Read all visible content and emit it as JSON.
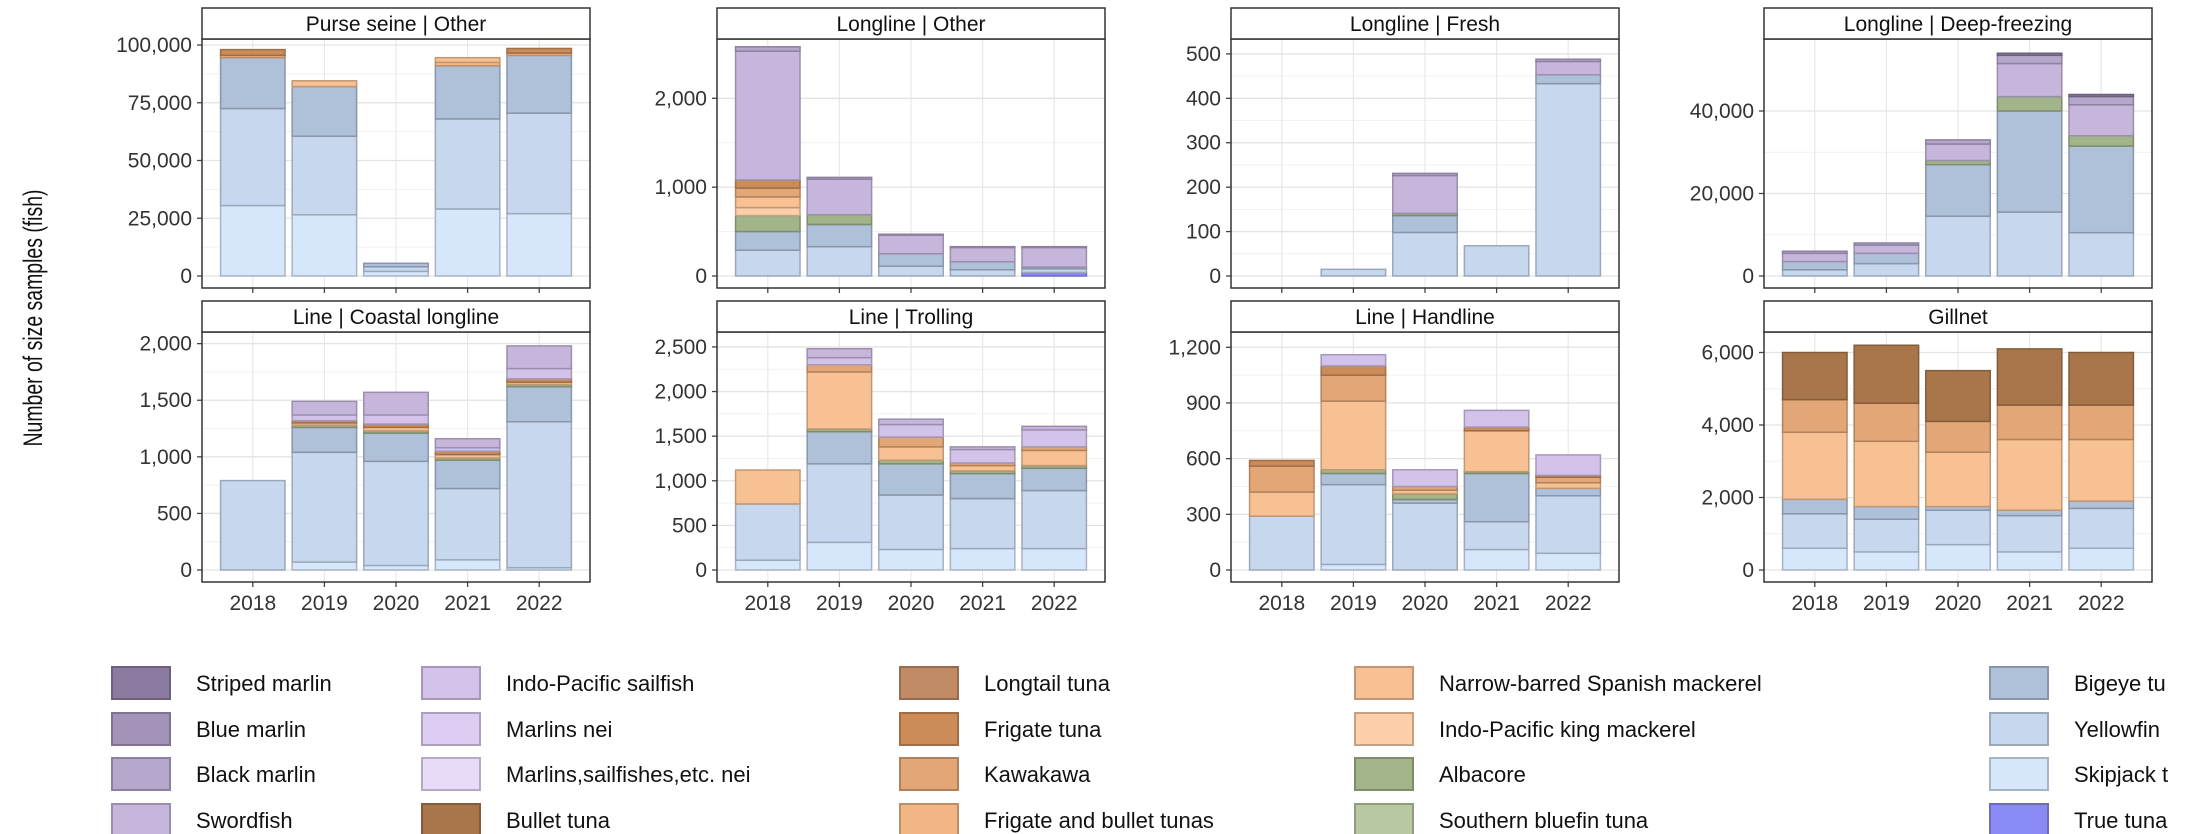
{
  "figure": {
    "ylabel": "Number of size samples (fish)",
    "years": [
      "2018",
      "2019",
      "2020",
      "2021",
      "2022"
    ]
  },
  "species": [
    {
      "key": "striped_marlin",
      "label": "Striped marlin",
      "color": "#8B7BA0"
    },
    {
      "key": "blue_marlin",
      "label": "Blue marlin",
      "color": "#A393B8"
    },
    {
      "key": "black_marlin",
      "label": "Black marlin",
      "color": "#B5A6CC"
    },
    {
      "key": "swordfish",
      "label": "Swordfish",
      "color": "#C7B6DC"
    },
    {
      "key": "ip_sailfish",
      "label": "Indo-Pacific sailfish",
      "color": "#D3C3EA"
    },
    {
      "key": "marlins_nei",
      "label": "Marlins nei",
      "color": "#DDCDF2"
    },
    {
      "key": "marlins_sailfishes_nei",
      "label": "Marlins,sailfishes,etc. nei",
      "color": "#E8DAF9"
    },
    {
      "key": "bullet_tuna",
      "label": "Bullet tuna",
      "color": "#A8764A"
    },
    {
      "key": "longtail_tuna",
      "label": "Longtail tuna",
      "color": "#C08B64"
    },
    {
      "key": "frigate_tuna",
      "label": "Frigate tuna",
      "color": "#CC8C5A"
    },
    {
      "key": "kawakawa",
      "label": "Kawakawa",
      "color": "#E3A676"
    },
    {
      "key": "frigate_bullet",
      "label": "Frigate and bullet tunas",
      "color": "#F2B584"
    },
    {
      "key": "narrow_barred",
      "label": "Narrow-barred Spanish mackerel",
      "color": "#F8C194"
    },
    {
      "key": "ip_king",
      "label": "Indo-Pacific king mackerel",
      "color": "#FCCEAA"
    },
    {
      "key": "albacore",
      "label": "Albacore",
      "color": "#A1B48A"
    },
    {
      "key": "southern_bluefin",
      "label": "Southern bluefin tuna",
      "color": "#B8C8A0"
    },
    {
      "key": "bigeye",
      "label": "Bigeye tu",
      "color": "#AFC0D9"
    },
    {
      "key": "yellowfin",
      "label": "Yellowfin",
      "color": "#C7D7EE"
    },
    {
      "key": "skipjack",
      "label": "Skipjack t",
      "color": "#D6E7FB"
    },
    {
      "key": "true_tuna",
      "label": "True tuna",
      "color": "#8A8AF5"
    }
  ],
  "chart_data": [
    {
      "type": "bar",
      "stacked": true,
      "title": "Purse seine | Other",
      "ylim": [
        0,
        100000
      ],
      "yticks": [
        0,
        25000,
        50000,
        75000,
        100000
      ],
      "ytick_labels": [
        "0",
        "25,000",
        "50,000",
        "75,000",
        "100,000"
      ],
      "categories": [
        "2018",
        "2019",
        "2020",
        "2021",
        "2022"
      ],
      "series": [
        {
          "species": "skipjack",
          "values": [
            30500,
            26500,
            2000,
            29000,
            27000
          ]
        },
        {
          "species": "yellowfin",
          "values": [
            42000,
            34000,
            2000,
            39000,
            43500
          ]
        },
        {
          "species": "bigeye",
          "values": [
            22000,
            21500,
            1500,
            23000,
            25000
          ]
        },
        {
          "species": "frigate_bullet",
          "values": [
            1000,
            0,
            0,
            1500,
            1000
          ]
        },
        {
          "species": "narrow_barred",
          "values": [
            0,
            2500,
            0,
            2000,
            0
          ]
        },
        {
          "species": "frigate_tuna",
          "values": [
            2500,
            0,
            0,
            0,
            2000
          ]
        }
      ]
    },
    {
      "type": "bar",
      "stacked": true,
      "title": "Longline | Other",
      "ylim": [
        0,
        2600
      ],
      "yticks": [
        0,
        1000,
        2000
      ],
      "ytick_labels": [
        "0",
        "1,000",
        "2,000"
      ],
      "categories": [
        "2018",
        "2019",
        "2020",
        "2021",
        "2022"
      ],
      "series": [
        {
          "species": "true_tuna",
          "values": [
            0,
            0,
            0,
            0,
            40
          ]
        },
        {
          "species": "yellowfin",
          "values": [
            290,
            330,
            110,
            70,
            40
          ]
        },
        {
          "species": "bigeye",
          "values": [
            210,
            250,
            140,
            90,
            20
          ]
        },
        {
          "species": "albacore",
          "values": [
            180,
            110,
            0,
            0,
            0
          ]
        },
        {
          "species": "ip_king",
          "values": [
            90,
            0,
            0,
            0,
            0
          ]
        },
        {
          "species": "narrow_barred",
          "values": [
            120,
            0,
            0,
            0,
            0
          ]
        },
        {
          "species": "kawakawa",
          "values": [
            100,
            0,
            0,
            0,
            0
          ]
        },
        {
          "species": "frigate_tuna",
          "values": [
            90,
            0,
            0,
            0,
            0
          ]
        },
        {
          "species": "swordfish",
          "values": [
            1450,
            400,
            210,
            160,
            220
          ]
        },
        {
          "species": "black_marlin",
          "values": [
            50,
            20,
            10,
            10,
            10
          ]
        }
      ]
    },
    {
      "type": "bar",
      "stacked": true,
      "title": "Longline | Fresh",
      "ylim": [
        0,
        520
      ],
      "yticks": [
        0,
        100,
        200,
        300,
        400,
        500
      ],
      "ytick_labels": [
        "0",
        "100",
        "200",
        "300",
        "400",
        "500"
      ],
      "categories": [
        "2018",
        "2019",
        "2020",
        "2021",
        "2022"
      ],
      "series": [
        {
          "species": "yellowfin",
          "values": [
            0,
            15,
            98,
            68,
            433
          ]
        },
        {
          "species": "bigeye",
          "values": [
            0,
            0,
            38,
            0,
            20
          ]
        },
        {
          "species": "albacore",
          "values": [
            0,
            0,
            5,
            0,
            0
          ]
        },
        {
          "species": "swordfish",
          "values": [
            0,
            0,
            85,
            0,
            30
          ]
        },
        {
          "species": "black_marlin",
          "values": [
            0,
            0,
            5,
            0,
            5
          ]
        }
      ]
    },
    {
      "type": "bar",
      "stacked": true,
      "title": "Longline | Deep-freezing",
      "ylim": [
        0,
        56000
      ],
      "yticks": [
        0,
        20000,
        40000
      ],
      "ytick_labels": [
        "0",
        "20,000",
        "40,000"
      ],
      "categories": [
        "2018",
        "2019",
        "2020",
        "2021",
        "2022"
      ],
      "series": [
        {
          "species": "yellowfin",
          "values": [
            1500,
            3000,
            14500,
            15500,
            10500
          ]
        },
        {
          "species": "bigeye",
          "values": [
            2000,
            2500,
            12500,
            24500,
            21000
          ]
        },
        {
          "species": "albacore",
          "values": [
            0,
            0,
            1000,
            3500,
            2500
          ]
        },
        {
          "species": "swordfish",
          "values": [
            2000,
            2000,
            4000,
            8000,
            7500
          ]
        },
        {
          "species": "black_marlin",
          "values": [
            500,
            500,
            1000,
            2000,
            2000
          ]
        },
        {
          "species": "striped_marlin",
          "values": [
            0,
            0,
            0,
            500,
            500
          ]
        }
      ]
    },
    {
      "type": "bar",
      "stacked": true,
      "title": "Line | Coastal longline",
      "ylim": [
        0,
        2050
      ],
      "yticks": [
        0,
        500,
        1000,
        1500,
        2000
      ],
      "ytick_labels": [
        "0",
        "500",
        "1,000",
        "1,500",
        "2,000"
      ],
      "categories": [
        "2018",
        "2019",
        "2020",
        "2021",
        "2022"
      ],
      "series": [
        {
          "species": "skipjack",
          "values": [
            0,
            70,
            40,
            90,
            20
          ]
        },
        {
          "species": "yellowfin",
          "values": [
            790,
            970,
            920,
            630,
            1290
          ]
        },
        {
          "species": "bigeye",
          "values": [
            0,
            220,
            250,
            250,
            310
          ]
        },
        {
          "species": "albacore",
          "values": [
            0,
            20,
            20,
            20,
            20
          ]
        },
        {
          "species": "narrow_barred",
          "values": [
            0,
            20,
            30,
            30,
            20
          ]
        },
        {
          "species": "frigate_tuna",
          "values": [
            0,
            20,
            30,
            30,
            30
          ]
        },
        {
          "species": "ip_sailfish",
          "values": [
            0,
            50,
            80,
            30,
            90
          ]
        },
        {
          "species": "swordfish",
          "values": [
            0,
            120,
            200,
            80,
            200
          ]
        }
      ]
    },
    {
      "type": "bar",
      "stacked": true,
      "title": "Line | Trolling",
      "ylim": [
        0,
        2600
      ],
      "yticks": [
        0,
        500,
        1000,
        1500,
        2000,
        2500
      ],
      "ytick_labels": [
        "0",
        "500",
        "1,000",
        "1,500",
        "2,000",
        "2,500"
      ],
      "categories": [
        "2018",
        "2019",
        "2020",
        "2021",
        "2022"
      ],
      "series": [
        {
          "species": "skipjack",
          "values": [
            110,
            310,
            230,
            240,
            240
          ]
        },
        {
          "species": "yellowfin",
          "values": [
            630,
            880,
            610,
            560,
            650
          ]
        },
        {
          "species": "bigeye",
          "values": [
            0,
            360,
            350,
            280,
            250
          ]
        },
        {
          "species": "albacore",
          "values": [
            0,
            30,
            40,
            30,
            30
          ]
        },
        {
          "species": "narrow_barred",
          "values": [
            380,
            640,
            150,
            60,
            170
          ]
        },
        {
          "species": "kawakawa",
          "values": [
            0,
            80,
            110,
            30,
            40
          ]
        },
        {
          "species": "ip_sailfish",
          "values": [
            0,
            80,
            140,
            150,
            190
          ]
        },
        {
          "species": "swordfish",
          "values": [
            0,
            100,
            60,
            30,
            40
          ]
        }
      ]
    },
    {
      "type": "bar",
      "stacked": true,
      "title": "Line | Handline",
      "ylim": [
        0,
        1250
      ],
      "yticks": [
        0,
        300,
        600,
        900,
        1200
      ],
      "ytick_labels": [
        "0",
        "300",
        "600",
        "900",
        "1,200"
      ],
      "categories": [
        "2018",
        "2019",
        "2020",
        "2021",
        "2022"
      ],
      "series": [
        {
          "species": "skipjack",
          "values": [
            0,
            30,
            0,
            110,
            90
          ]
        },
        {
          "species": "yellowfin",
          "values": [
            290,
            430,
            360,
            150,
            310
          ]
        },
        {
          "species": "bigeye",
          "values": [
            0,
            60,
            20,
            260,
            40
          ]
        },
        {
          "species": "albacore",
          "values": [
            0,
            20,
            30,
            10,
            0
          ]
        },
        {
          "species": "narrow_barred",
          "values": [
            130,
            370,
            20,
            220,
            30
          ]
        },
        {
          "species": "kawakawa",
          "values": [
            140,
            140,
            20,
            0,
            30
          ]
        },
        {
          "species": "frigate_tuna",
          "values": [
            30,
            50,
            0,
            20,
            10
          ]
        },
        {
          "species": "ip_sailfish",
          "values": [
            0,
            60,
            90,
            90,
            110
          ]
        }
      ]
    },
    {
      "type": "bar",
      "stacked": true,
      "title": "Gillnet",
      "ylim": [
        0,
        6400
      ],
      "yticks": [
        0,
        2000,
        4000,
        6000
      ],
      "ytick_labels": [
        "0",
        "2,000",
        "4,000",
        "6,000"
      ],
      "categories": [
        "2018",
        "2019",
        "2020",
        "2021",
        "2022"
      ],
      "series": [
        {
          "species": "skipjack",
          "values": [
            600,
            500,
            700,
            500,
            600
          ]
        },
        {
          "species": "yellowfin",
          "values": [
            950,
            900,
            950,
            1000,
            1100
          ]
        },
        {
          "species": "bigeye",
          "values": [
            400,
            350,
            100,
            150,
            200
          ]
        },
        {
          "species": "narrow_barred",
          "values": [
            1850,
            1800,
            1500,
            1950,
            1700
          ]
        },
        {
          "species": "kawakawa",
          "values": [
            900,
            1050,
            850,
            950,
            950
          ]
        },
        {
          "species": "bullet_tuna",
          "values": [
            1300,
            1600,
            1400,
            1550,
            1450
          ]
        }
      ]
    }
  ]
}
